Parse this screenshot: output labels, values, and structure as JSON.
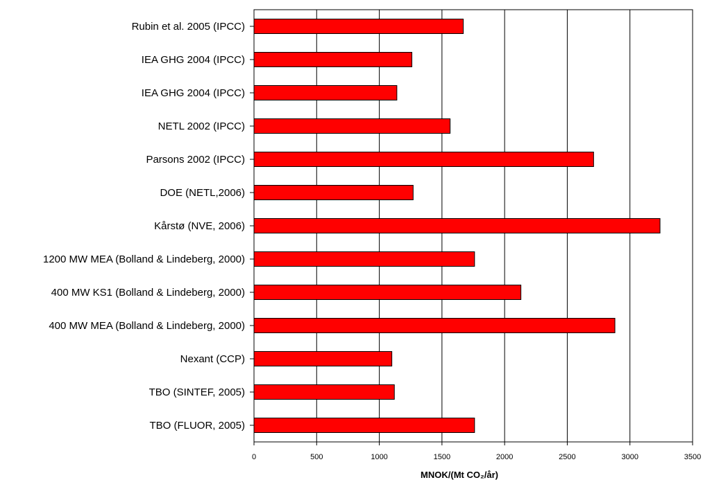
{
  "chart_data": {
    "type": "bar",
    "orientation": "horizontal",
    "categories": [
      "Rubin et al. 2005 (IPCC)",
      "IEA GHG 2004 (IPCC)",
      "IEA GHG 2004 (IPCC)",
      "NETL 2002 (IPCC)",
      "Parsons 2002 (IPCC)",
      "DOE (NETL,2006)",
      "Kårstø (NVE, 2006)",
      "1200 MW  MEA (Bolland & Lindeberg, 2000)",
      "400 MW KS1 (Bolland & Lindeberg, 2000)",
      "400 MW  MEA (Bolland & Lindeberg, 2000)",
      "Nexant (CCP)",
      "TBO (SINTEF, 2005)",
      "TBO (FLUOR, 2005)"
    ],
    "values": [
      1670,
      1260,
      1140,
      1565,
      2710,
      1270,
      3240,
      1760,
      2130,
      2880,
      1100,
      1120,
      1760
    ],
    "xlim": [
      0,
      3500
    ],
    "xticks": [
      "0",
      "500",
      "1000",
      "1500",
      "2000",
      "2500",
      "3000",
      "3500"
    ],
    "xlabel": "MNOK/(Mt CO₂/år)",
    "ylabel": "",
    "title": "",
    "grid": "vertical",
    "bar_color": "#ff0000",
    "bar_edge_color": "#000000",
    "legend": "none"
  }
}
